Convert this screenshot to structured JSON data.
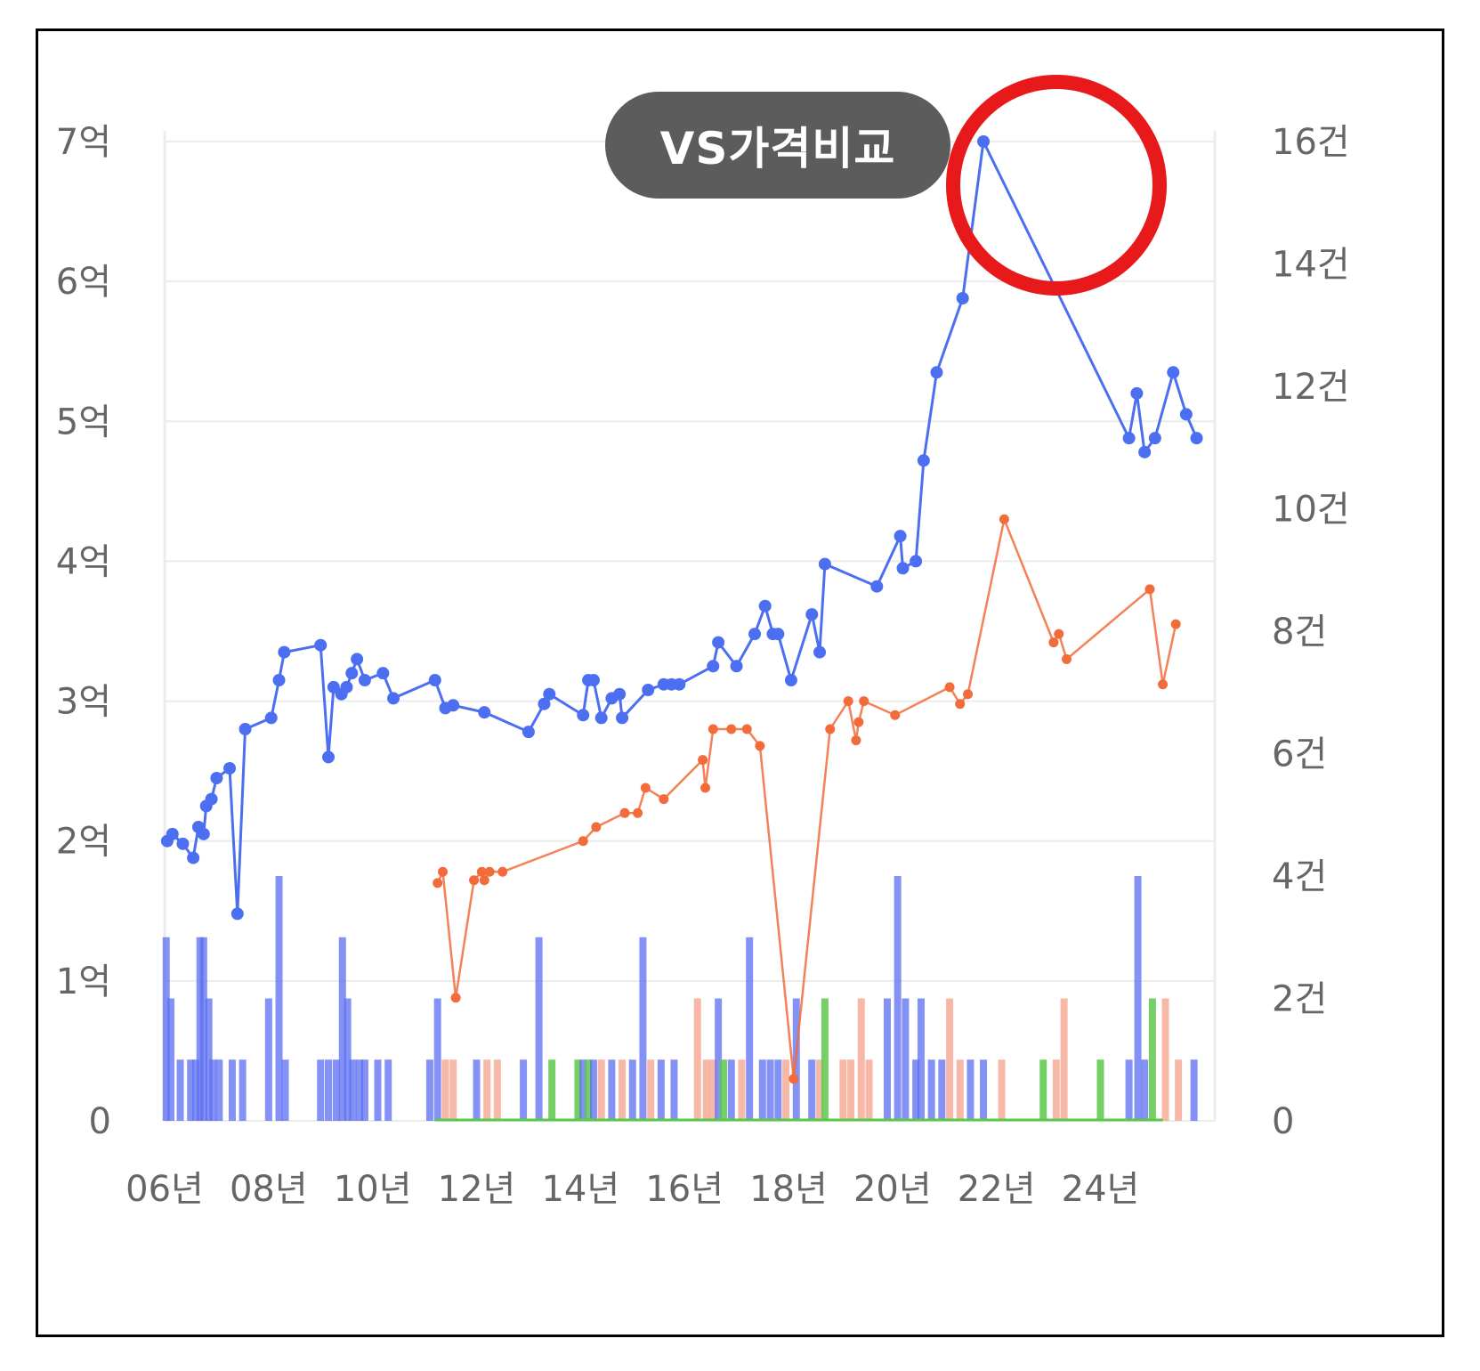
{
  "chart_data": {
    "type": "line",
    "title": "VS가격비교",
    "x_tick_labels": [
      "06년",
      "08년",
      "10년",
      "12년",
      "14년",
      "16년",
      "18년",
      "20년",
      "22년",
      "24년"
    ],
    "x_range": [
      2006.0,
      2026.2
    ],
    "y_left": {
      "ticks": [
        "0",
        "1억",
        "2억",
        "3억",
        "4억",
        "5억",
        "6억",
        "7억"
      ],
      "range": [
        0,
        7
      ]
    },
    "y_right": {
      "ticks": [
        "0",
        "2건",
        "4건",
        "6건",
        "8건",
        "10건",
        "12건",
        "14건",
        "16건"
      ],
      "range": [
        0,
        16
      ]
    },
    "grid": true,
    "colors": {
      "blue": "#4b6ff0",
      "orange": "#f26b3a",
      "bar_blue": "#5b6ef2",
      "bar_orange": "#f4a08a",
      "bar_green": "#5cc84a",
      "highlight": "#e8191b",
      "title_bg": "#5c5c5c"
    },
    "series": [
      {
        "color": "blue",
        "axis": "left",
        "points": [
          [
            2006.05,
            2.0
          ],
          [
            2006.15,
            2.05
          ],
          [
            2006.35,
            1.98
          ],
          [
            2006.55,
            1.88
          ],
          [
            2006.65,
            2.1
          ],
          [
            2006.75,
            2.05
          ],
          [
            2006.8,
            2.25
          ],
          [
            2006.9,
            2.3
          ],
          [
            2007.0,
            2.45
          ],
          [
            2007.25,
            2.52
          ],
          [
            2007.4,
            1.48
          ],
          [
            2007.55,
            2.8
          ],
          [
            2008.05,
            2.88
          ],
          [
            2008.2,
            3.15
          ],
          [
            2008.3,
            3.35
          ],
          [
            2009.0,
            3.4
          ],
          [
            2009.15,
            2.6
          ],
          [
            2009.25,
            3.1
          ],
          [
            2009.4,
            3.05
          ],
          [
            2009.5,
            3.1
          ],
          [
            2009.6,
            3.2
          ],
          [
            2009.7,
            3.3
          ],
          [
            2009.85,
            3.15
          ],
          [
            2010.2,
            3.2
          ],
          [
            2010.4,
            3.02
          ],
          [
            2011.2,
            3.15
          ],
          [
            2011.4,
            2.95
          ],
          [
            2011.55,
            2.97
          ],
          [
            2012.15,
            2.92
          ],
          [
            2013.0,
            2.78
          ],
          [
            2013.3,
            2.98
          ],
          [
            2013.4,
            3.05
          ],
          [
            2014.05,
            2.9
          ],
          [
            2014.15,
            3.15
          ],
          [
            2014.25,
            3.15
          ],
          [
            2014.4,
            2.88
          ],
          [
            2014.6,
            3.02
          ],
          [
            2014.75,
            3.05
          ],
          [
            2014.8,
            2.88
          ],
          [
            2015.3,
            3.08
          ],
          [
            2015.6,
            3.12
          ],
          [
            2015.75,
            3.12
          ],
          [
            2015.9,
            3.12
          ],
          [
            2016.55,
            3.25
          ],
          [
            2016.65,
            3.42
          ],
          [
            2017.0,
            3.25
          ],
          [
            2017.35,
            3.48
          ],
          [
            2017.55,
            3.68
          ],
          [
            2017.7,
            3.48
          ],
          [
            2017.8,
            3.48
          ],
          [
            2018.05,
            3.15
          ],
          [
            2018.45,
            3.62
          ],
          [
            2018.6,
            3.35
          ],
          [
            2018.7,
            3.98
          ],
          [
            2019.7,
            3.82
          ],
          [
            2020.15,
            4.18
          ],
          [
            2020.2,
            3.95
          ],
          [
            2020.45,
            4.0
          ],
          [
            2020.6,
            4.72
          ],
          [
            2020.85,
            5.35
          ],
          [
            2021.35,
            5.88
          ],
          [
            2021.75,
            7.0
          ],
          [
            2024.55,
            4.88
          ],
          [
            2024.7,
            5.2
          ],
          [
            2024.85,
            4.78
          ],
          [
            2025.05,
            4.88
          ],
          [
            2025.4,
            5.35
          ],
          [
            2025.65,
            5.05
          ],
          [
            2025.85,
            4.88
          ]
        ]
      },
      {
        "color": "orange",
        "axis": "left",
        "points": [
          [
            2011.25,
            1.7
          ],
          [
            2011.35,
            1.78
          ],
          [
            2011.6,
            0.88
          ],
          [
            2011.95,
            1.72
          ],
          [
            2012.1,
            1.78
          ],
          [
            2012.15,
            1.72
          ],
          [
            2012.25,
            1.78
          ],
          [
            2012.5,
            1.78
          ],
          [
            2014.05,
            2.0
          ],
          [
            2014.3,
            2.1
          ],
          [
            2014.85,
            2.2
          ],
          [
            2015.1,
            2.2
          ],
          [
            2015.25,
            2.38
          ],
          [
            2015.6,
            2.3
          ],
          [
            2016.35,
            2.58
          ],
          [
            2016.4,
            2.38
          ],
          [
            2016.55,
            2.8
          ],
          [
            2016.9,
            2.8
          ],
          [
            2017.2,
            2.8
          ],
          [
            2017.45,
            2.68
          ],
          [
            2018.1,
            0.3
          ],
          [
            2018.8,
            2.8
          ],
          [
            2019.15,
            3.0
          ],
          [
            2019.3,
            2.72
          ],
          [
            2019.35,
            2.85
          ],
          [
            2019.45,
            3.0
          ],
          [
            2020.05,
            2.9
          ],
          [
            2021.1,
            3.1
          ],
          [
            2021.3,
            2.98
          ],
          [
            2021.45,
            3.05
          ],
          [
            2022.15,
            4.3
          ],
          [
            2023.1,
            3.42
          ],
          [
            2023.2,
            3.48
          ],
          [
            2023.35,
            3.3
          ],
          [
            2024.95,
            3.8
          ],
          [
            2025.2,
            3.12
          ],
          [
            2025.45,
            3.55
          ]
        ]
      }
    ],
    "bars": {
      "axis": "right",
      "items": [
        [
          "blue",
          2006.03,
          3
        ],
        [
          "blue",
          2006.12,
          2
        ],
        [
          "blue",
          2006.3,
          1
        ],
        [
          "blue",
          2006.5,
          1
        ],
        [
          "blue",
          2006.6,
          1
        ],
        [
          "blue",
          2006.68,
          3
        ],
        [
          "blue",
          2006.75,
          3
        ],
        [
          "blue",
          2006.85,
          2
        ],
        [
          "blue",
          2006.93,
          1
        ],
        [
          "blue",
          2007.05,
          1
        ],
        [
          "blue",
          2007.3,
          1
        ],
        [
          "blue",
          2007.5,
          1
        ],
        [
          "blue",
          2008.0,
          2
        ],
        [
          "blue",
          2008.2,
          4
        ],
        [
          "blue",
          2008.32,
          1
        ],
        [
          "blue",
          2009.0,
          1
        ],
        [
          "blue",
          2009.15,
          1
        ],
        [
          "blue",
          2009.3,
          1
        ],
        [
          "blue",
          2009.42,
          3
        ],
        [
          "blue",
          2009.52,
          2
        ],
        [
          "blue",
          2009.62,
          1
        ],
        [
          "blue",
          2009.75,
          1
        ],
        [
          "blue",
          2009.85,
          1
        ],
        [
          "blue",
          2010.1,
          1
        ],
        [
          "blue",
          2010.3,
          1
        ],
        [
          "blue",
          2011.1,
          1
        ],
        [
          "blue",
          2011.25,
          2
        ],
        [
          "orange",
          2011.4,
          1
        ],
        [
          "orange",
          2011.55,
          1
        ],
        [
          "blue",
          2012.0,
          1
        ],
        [
          "orange",
          2012.2,
          1
        ],
        [
          "orange",
          2012.4,
          1
        ],
        [
          "blue",
          2012.9,
          1
        ],
        [
          "blue",
          2013.2,
          3
        ],
        [
          "green",
          2013.45,
          1
        ],
        [
          "green",
          2013.95,
          1
        ],
        [
          "blue",
          2014.05,
          1
        ],
        [
          "green",
          2014.15,
          1
        ],
        [
          "blue",
          2014.25,
          1
        ],
        [
          "orange",
          2014.4,
          1
        ],
        [
          "blue",
          2014.6,
          1
        ],
        [
          "orange",
          2014.8,
          1
        ],
        [
          "blue",
          2015.0,
          1
        ],
        [
          "blue",
          2015.2,
          3
        ],
        [
          "orange",
          2015.35,
          1
        ],
        [
          "blue",
          2015.55,
          1
        ],
        [
          "blue",
          2015.8,
          1
        ],
        [
          "orange",
          2016.25,
          2
        ],
        [
          "orange",
          2016.42,
          1
        ],
        [
          "orange",
          2016.55,
          1
        ],
        [
          "blue",
          2016.65,
          2
        ],
        [
          "green",
          2016.75,
          1
        ],
        [
          "blue",
          2016.9,
          1
        ],
        [
          "orange",
          2017.1,
          1
        ],
        [
          "blue",
          2017.25,
          3
        ],
        [
          "blue",
          2017.5,
          1
        ],
        [
          "blue",
          2017.65,
          1
        ],
        [
          "blue",
          2017.8,
          1
        ],
        [
          "orange",
          2017.95,
          1
        ],
        [
          "blue",
          2018.15,
          2
        ],
        [
          "blue",
          2018.45,
          1
        ],
        [
          "orange",
          2018.6,
          1
        ],
        [
          "green",
          2018.7,
          2
        ],
        [
          "orange",
          2019.05,
          1
        ],
        [
          "orange",
          2019.2,
          1
        ],
        [
          "orange",
          2019.4,
          2
        ],
        [
          "orange",
          2019.55,
          1
        ],
        [
          "blue",
          2019.9,
          2
        ],
        [
          "blue",
          2020.1,
          4
        ],
        [
          "blue",
          2020.25,
          2
        ],
        [
          "blue",
          2020.45,
          1
        ],
        [
          "blue",
          2020.55,
          2
        ],
        [
          "blue",
          2020.75,
          1
        ],
        [
          "blue",
          2020.95,
          1
        ],
        [
          "orange",
          2021.1,
          2
        ],
        [
          "orange",
          2021.3,
          1
        ],
        [
          "blue",
          2021.5,
          1
        ],
        [
          "blue",
          2021.75,
          1
        ],
        [
          "orange",
          2022.1,
          1
        ],
        [
          "green",
          2022.9,
          1
        ],
        [
          "orange",
          2023.15,
          1
        ],
        [
          "orange",
          2023.3,
          2
        ],
        [
          "green",
          2024.0,
          1
        ],
        [
          "blue",
          2024.55,
          1
        ],
        [
          "blue",
          2024.72,
          4
        ],
        [
          "blue",
          2024.85,
          1
        ],
        [
          "green",
          2025.0,
          2
        ],
        [
          "orange",
          2025.25,
          2
        ],
        [
          "orange",
          2025.5,
          1
        ],
        [
          "blue",
          2025.8,
          1
        ]
      ]
    }
  }
}
